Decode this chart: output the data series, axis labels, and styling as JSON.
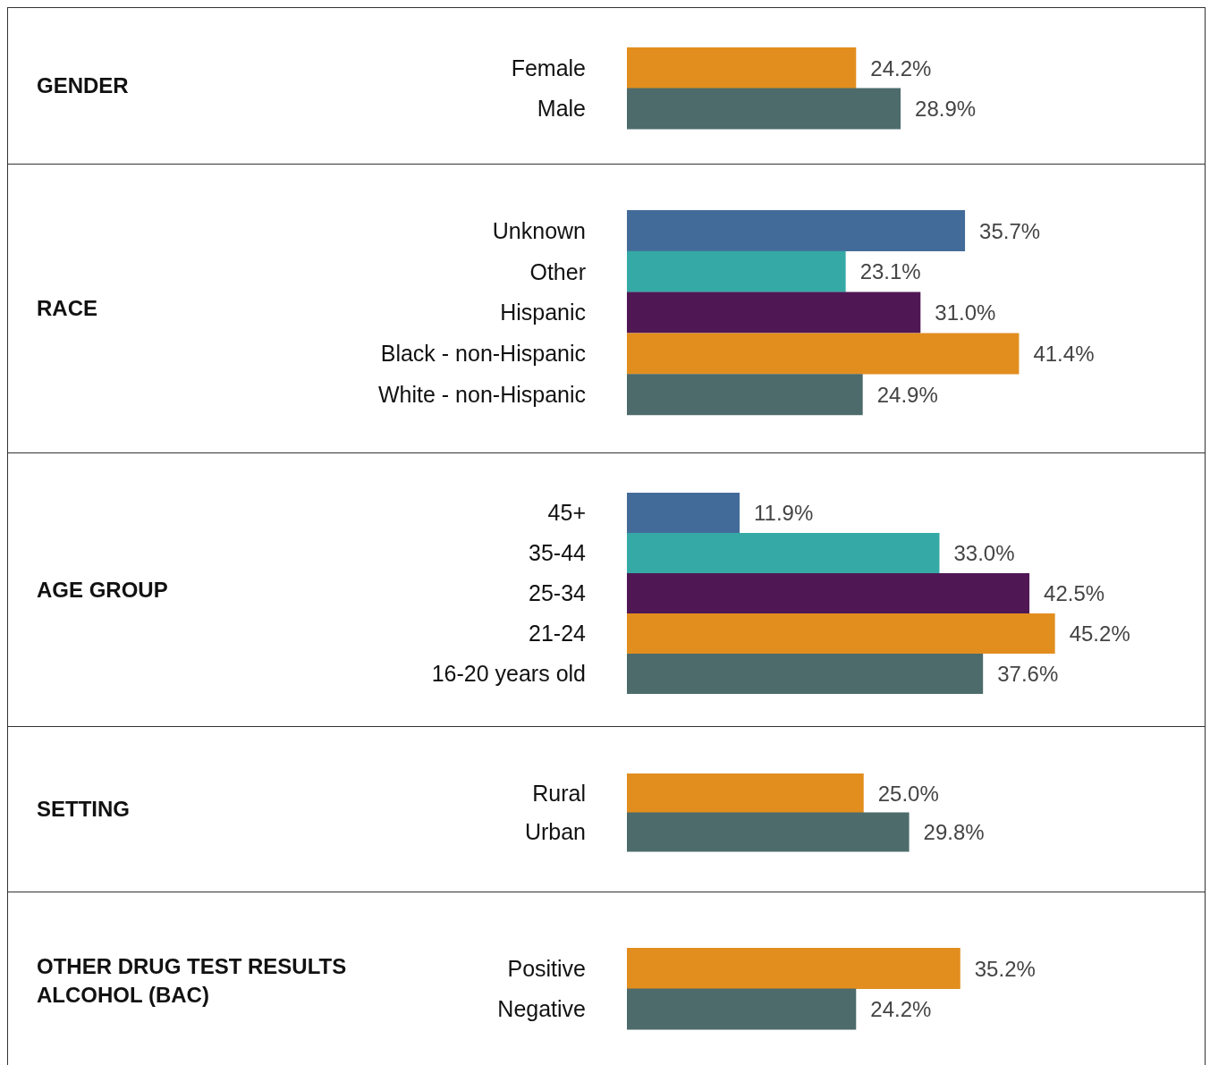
{
  "chart_data": [
    {
      "type": "bar",
      "orientation": "horizontal",
      "ylabel": "GENDER",
      "categories": [
        "Female",
        "Male"
      ],
      "values": [
        24.2,
        28.9
      ],
      "value_labels": [
        "24.2%",
        "28.9%"
      ],
      "colors": [
        "#e28e1e",
        "#4d6b6b"
      ],
      "xlim": [
        0,
        61
      ]
    },
    {
      "type": "bar",
      "orientation": "horizontal",
      "ylabel": "RACE",
      "categories": [
        "Unknown",
        "Other",
        "Hispanic",
        "Black - non-Hispanic",
        "White - non-Hispanic"
      ],
      "values": [
        35.7,
        23.1,
        31.0,
        41.4,
        24.9
      ],
      "value_labels": [
        "35.7%",
        "23.1%",
        "31.0%",
        "41.4%",
        "24.9%"
      ],
      "colors": [
        "#436b99",
        "#35a9a5",
        "#501755",
        "#e28e1e",
        "#4d6b6b"
      ],
      "xlim": [
        0,
        61
      ]
    },
    {
      "type": "bar",
      "orientation": "horizontal",
      "ylabel": "AGE GROUP",
      "categories": [
        "45+",
        "35-44",
        "25-34",
        "21-24",
        "16-20 years old"
      ],
      "values": [
        11.9,
        33.0,
        42.5,
        45.2,
        37.6
      ],
      "value_labels": [
        "11.9%",
        "33.0%",
        "42.5%",
        "45.2%",
        "37.6%"
      ],
      "colors": [
        "#436b99",
        "#35a9a5",
        "#501755",
        "#e28e1e",
        "#4d6b6b"
      ],
      "xlim": [
        0,
        61
      ]
    },
    {
      "type": "bar",
      "orientation": "horizontal",
      "ylabel": "SETTING",
      "categories": [
        "Rural",
        "Urban"
      ],
      "values": [
        25.0,
        29.8
      ],
      "value_labels": [
        "25.0%",
        "29.8%"
      ],
      "colors": [
        "#e28e1e",
        "#4d6b6b"
      ],
      "xlim": [
        0,
        61
      ]
    },
    {
      "type": "bar",
      "orientation": "horizontal",
      "ylabel": "OTHER DRUG TEST RESULTS\nALCOHOL (BAC)",
      "categories": [
        "Positive",
        "Negative"
      ],
      "values": [
        35.2,
        24.2
      ],
      "value_labels": [
        "35.2%",
        "24.2%"
      ],
      "colors": [
        "#e28e1e",
        "#4d6b6b"
      ],
      "xlim": [
        0,
        61
      ]
    }
  ]
}
